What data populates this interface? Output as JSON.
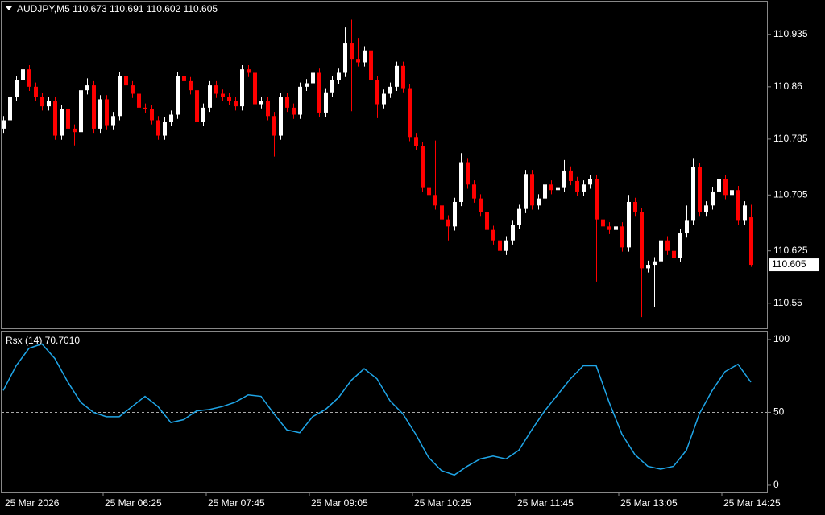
{
  "chart_data": [
    {
      "type": "candlestick",
      "title": "AUDJPY,M5  110.673 110.691 110.602 110.605",
      "x_labels": [
        "25 Mar 2026",
        "25 Mar 06:25",
        "25 Mar 07:45",
        "25 Mar 09:05",
        "25 Mar 10:25",
        "25 Mar 11:45",
        "25 Mar 13:05",
        "25 Mar 14:25"
      ],
      "up_color": "#ffffff",
      "down_color": "#ff0000",
      "ylim": [
        110.514,
        110.982
      ],
      "yticks": [
        110.55,
        110.625,
        110.705,
        110.785,
        110.86,
        110.935
      ],
      "grid": false,
      "ohlc": [
        [
          110.8,
          110.818,
          110.794,
          110.812
        ],
        [
          110.812,
          110.851,
          110.806,
          110.845
        ],
        [
          110.845,
          110.876,
          110.839,
          110.87
        ],
        [
          110.87,
          110.898,
          110.864,
          110.885
        ],
        [
          110.885,
          110.891,
          110.854,
          110.86
        ],
        [
          110.86,
          110.866,
          110.839,
          110.845
        ],
        [
          110.845,
          110.851,
          110.826,
          110.832
        ],
        [
          110.832,
          110.846,
          110.826,
          110.84
        ],
        [
          110.84,
          110.846,
          110.784,
          110.79
        ],
        [
          110.79,
          110.834,
          110.784,
          110.828
        ],
        [
          110.828,
          110.834,
          110.794,
          110.8
        ],
        [
          110.8,
          110.806,
          110.776,
          110.795
        ],
        [
          110.795,
          110.861,
          110.789,
          110.855
        ],
        [
          110.855,
          110.872,
          110.849,
          110.862
        ],
        [
          110.862,
          110.868,
          110.794,
          110.8
        ],
        [
          110.8,
          110.848,
          110.794,
          110.842
        ],
        [
          110.842,
          110.848,
          110.799,
          110.805
        ],
        [
          110.805,
          110.824,
          110.799,
          110.818
        ],
        [
          110.818,
          110.881,
          110.812,
          110.875
        ],
        [
          110.875,
          110.881,
          110.856,
          110.862
        ],
        [
          110.862,
          110.868,
          110.844,
          110.85
        ],
        [
          110.85,
          110.856,
          110.824,
          110.83
        ],
        [
          110.83,
          110.836,
          110.822,
          110.828
        ],
        [
          110.828,
          110.834,
          110.806,
          110.812
        ],
        [
          110.812,
          110.818,
          110.784,
          110.79
        ],
        [
          110.79,
          110.816,
          110.784,
          110.81
        ],
        [
          110.81,
          110.826,
          110.804,
          110.82
        ],
        [
          110.82,
          110.881,
          110.814,
          110.875
        ],
        [
          110.875,
          110.881,
          110.862,
          110.868
        ],
        [
          110.868,
          110.874,
          110.849,
          110.855
        ],
        [
          110.855,
          110.861,
          110.804,
          110.81
        ],
        [
          110.81,
          110.836,
          110.804,
          110.83
        ],
        [
          110.83,
          110.868,
          110.824,
          110.862
        ],
        [
          110.862,
          110.868,
          110.844,
          110.85
        ],
        [
          110.85,
          110.856,
          110.839,
          110.845
        ],
        [
          110.845,
          110.851,
          110.834,
          110.84
        ],
        [
          110.84,
          110.846,
          110.826,
          110.832
        ],
        [
          110.832,
          110.891,
          110.826,
          110.885
        ],
        [
          110.885,
          110.891,
          110.874,
          110.88
        ],
        [
          110.88,
          110.886,
          110.829,
          110.835
        ],
        [
          110.835,
          110.846,
          110.829,
          110.84
        ],
        [
          110.84,
          110.846,
          110.812,
          110.818
        ],
        [
          110.818,
          110.824,
          110.76,
          110.79
        ],
        [
          110.79,
          110.851,
          110.784,
          110.845
        ],
        [
          110.845,
          110.851,
          110.824,
          110.83
        ],
        [
          110.83,
          110.836,
          110.814,
          110.82
        ],
        [
          110.82,
          110.866,
          110.814,
          110.86
        ],
        [
          110.86,
          110.871,
          110.854,
          110.865
        ],
        [
          110.865,
          110.933,
          110.859,
          110.88
        ],
        [
          110.88,
          110.886,
          110.817,
          110.823
        ],
        [
          110.823,
          110.858,
          110.817,
          110.852
        ],
        [
          110.852,
          110.876,
          110.846,
          110.87
        ],
        [
          110.87,
          110.886,
          110.864,
          110.88
        ],
        [
          110.88,
          110.945,
          110.874,
          110.922
        ],
        [
          110.922,
          110.956,
          110.825,
          110.9
        ],
        [
          110.9,
          110.93,
          110.889,
          110.895
        ],
        [
          110.895,
          110.918,
          110.889,
          110.912
        ],
        [
          110.912,
          110.918,
          110.864,
          110.87
        ],
        [
          110.87,
          110.876,
          110.815,
          110.835
        ],
        [
          110.835,
          110.856,
          110.829,
          110.85
        ],
        [
          110.85,
          110.866,
          110.844,
          110.86
        ],
        [
          110.86,
          110.896,
          110.854,
          110.89
        ],
        [
          110.89,
          110.896,
          110.852,
          110.858
        ],
        [
          110.858,
          110.864,
          110.782,
          110.788
        ],
        [
          110.788,
          110.794,
          110.769,
          110.775
        ],
        [
          110.775,
          110.781,
          110.709,
          110.715
        ],
        [
          110.715,
          110.721,
          110.699,
          110.705
        ],
        [
          110.705,
          110.783,
          110.684,
          110.69
        ],
        [
          110.69,
          110.696,
          110.664,
          110.67
        ],
        [
          110.67,
          110.676,
          110.64,
          110.66
        ],
        [
          110.66,
          110.701,
          110.654,
          110.695
        ],
        [
          110.695,
          110.765,
          110.689,
          110.752
        ],
        [
          110.752,
          110.758,
          110.714,
          110.72
        ],
        [
          110.72,
          110.726,
          110.694,
          110.7
        ],
        [
          110.7,
          110.706,
          110.674,
          110.68
        ],
        [
          110.68,
          110.686,
          110.649,
          110.655
        ],
        [
          110.655,
          110.661,
          110.634,
          110.64
        ],
        [
          110.64,
          110.646,
          110.615,
          110.625
        ],
        [
          110.625,
          110.646,
          110.619,
          110.64
        ],
        [
          110.64,
          110.668,
          110.634,
          110.662
        ],
        [
          110.662,
          110.691,
          110.656,
          110.685
        ],
        [
          110.685,
          110.741,
          110.679,
          110.735
        ],
        [
          110.735,
          110.741,
          110.684,
          110.69
        ],
        [
          110.69,
          110.706,
          110.684,
          110.7
        ],
        [
          110.7,
          110.726,
          110.694,
          110.72
        ],
        [
          110.72,
          110.726,
          110.706,
          110.712
        ],
        [
          110.712,
          110.721,
          110.706,
          110.715
        ],
        [
          110.715,
          110.755,
          110.709,
          110.74
        ],
        [
          110.74,
          110.746,
          110.719,
          110.725
        ],
        [
          110.725,
          110.731,
          110.704,
          110.71
        ],
        [
          110.71,
          110.726,
          110.704,
          110.72
        ],
        [
          110.72,
          110.734,
          110.714,
          110.728
        ],
        [
          110.728,
          110.734,
          110.581,
          110.67
        ],
        [
          110.67,
          110.676,
          110.654,
          110.66
        ],
        [
          110.66,
          110.666,
          110.649,
          110.655
        ],
        [
          110.655,
          110.666,
          110.64,
          110.66
        ],
        [
          110.66,
          110.666,
          110.624,
          110.63
        ],
        [
          110.63,
          110.705,
          110.624,
          110.695
        ],
        [
          110.695,
          110.701,
          110.674,
          110.68
        ],
        [
          110.68,
          110.686,
          110.53,
          110.6
        ],
        [
          110.6,
          110.611,
          110.594,
          110.605
        ],
        [
          110.605,
          110.616,
          110.545,
          110.61
        ],
        [
          110.61,
          110.646,
          110.604,
          110.64
        ],
        [
          110.64,
          110.646,
          110.619,
          110.625
        ],
        [
          110.625,
          110.631,
          110.609,
          110.615
        ],
        [
          110.615,
          110.656,
          110.609,
          110.65
        ],
        [
          110.65,
          110.69,
          110.644,
          110.668
        ],
        [
          110.668,
          110.758,
          110.662,
          110.745
        ],
        [
          110.745,
          110.751,
          110.674,
          110.68
        ],
        [
          110.68,
          110.696,
          110.674,
          110.69
        ],
        [
          110.69,
          110.716,
          110.684,
          110.71
        ],
        [
          110.71,
          110.734,
          110.704,
          110.728
        ],
        [
          110.728,
          110.734,
          110.699,
          110.705
        ],
        [
          110.705,
          110.76,
          110.699,
          110.712
        ],
        [
          110.712,
          110.718,
          110.662,
          110.668
        ],
        [
          110.668,
          110.696,
          110.662,
          110.69
        ],
        [
          110.673,
          110.691,
          110.602,
          110.605
        ]
      ]
    },
    {
      "type": "line",
      "title": "Rsx (14) 70.7010",
      "color": "#1fa6e8",
      "ylim": [
        -5,
        105.5
      ],
      "yticks": [
        0,
        50,
        100
      ],
      "levels": [
        50
      ],
      "values": [
        65,
        82,
        94,
        97,
        87,
        71,
        57,
        50,
        47,
        47,
        54,
        61,
        54,
        43,
        45,
        51,
        52,
        54,
        57,
        62,
        61,
        49,
        38,
        36,
        47,
        52,
        60,
        72,
        80,
        73,
        58,
        49,
        35,
        19,
        10,
        7,
        13,
        18,
        20,
        18,
        24,
        38,
        51,
        62,
        73,
        82,
        82,
        57,
        35,
        21,
        13,
        11,
        13,
        24,
        49,
        65,
        78,
        83,
        70.7
      ]
    }
  ]
}
